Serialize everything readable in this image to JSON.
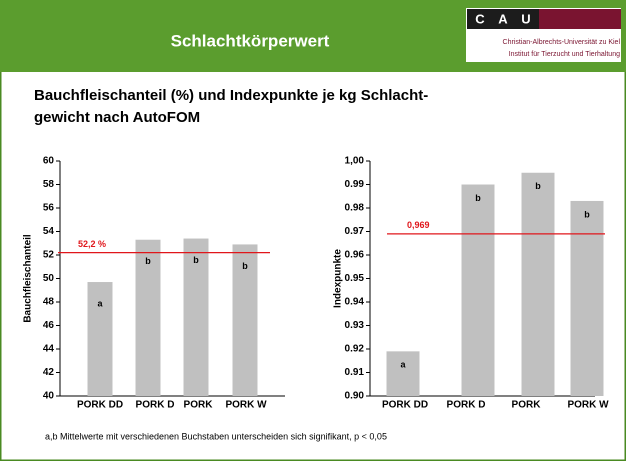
{
  "header": {
    "title": "Schlachtkörperwert",
    "logo": [
      "C",
      "A",
      "U"
    ],
    "university": "Christian-Albrechts-Universität zu Kiel",
    "institute": "Institut für Tierzucht und Tierhaltung"
  },
  "heading": [
    "Bauchfleischanteil (%) und Indexpunkte je kg Schlacht-",
    "gewicht nach AutoFOM"
  ],
  "footnote": "a,b Mittelwerte mit verschiedenen Buchstaben unterscheiden sich signifikant, p < 0,05",
  "chart_data": [
    {
      "type": "bar",
      "y_label": "Bauchfleischanteil",
      "categories": [
        "PORK DD",
        "PORK D",
        "PORK",
        "PORK W"
      ],
      "values": [
        49.7,
        53.3,
        53.4,
        52.9
      ],
      "letters": [
        "a",
        "b",
        "b",
        "b"
      ],
      "color": "#c0c0c0",
      "ylim": [
        40,
        60
      ],
      "yticks": [
        40,
        42,
        44,
        46,
        48,
        50,
        52,
        54,
        56,
        58,
        60
      ],
      "reference": {
        "value": 52.2,
        "label": "52,2 %",
        "color": "#e0161b"
      }
    },
    {
      "type": "bar",
      "y_label": "Indexpunkte",
      "categories": [
        "PORK DD",
        "PORK D",
        "PORK",
        "PORK W"
      ],
      "values": [
        0.919,
        0.99,
        0.995,
        0.983
      ],
      "letters": [
        "a",
        "b",
        "b",
        "b"
      ],
      "color": "#c0c0c0",
      "ylim": [
        0.9,
        1.0
      ],
      "yticks": [
        {
          "value": 0.9,
          "label": "0.90"
        },
        0.91,
        0.92,
        0.93,
        0.94,
        0.95,
        0.96,
        0.97,
        0.98,
        0.99,
        {
          "value": 1.0,
          "label": "1,00"
        }
      ],
      "reference": {
        "value": 0.969,
        "label": "0,969",
        "color": "#e0161b"
      }
    }
  ]
}
